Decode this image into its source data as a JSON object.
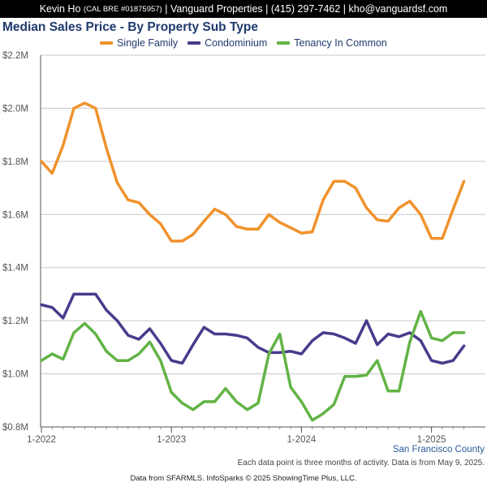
{
  "header": {
    "name": "Kevin Ho",
    "license": "(CAL BRE #01875957)",
    "company": "| Vanguard Properties | (415) 297-7462 | kho@vanguardsf.com"
  },
  "title": "Median Sales Price - By Property Sub Type",
  "region": "San Francisco County",
  "note": "Each data point is three months of activity. Data is from May 9, 2025.",
  "footer": "Data from SFARMLS. InfoSparks © 2025 ShowingTime Plus, LLC.",
  "chart_data": {
    "type": "line",
    "x": [
      "2022-01",
      "2022-02",
      "2022-03",
      "2022-04",
      "2022-05",
      "2022-06",
      "2022-07",
      "2022-08",
      "2022-09",
      "2022-10",
      "2022-11",
      "2022-12",
      "2023-01",
      "2023-02",
      "2023-03",
      "2023-04",
      "2023-05",
      "2023-06",
      "2023-07",
      "2023-08",
      "2023-09",
      "2023-10",
      "2023-11",
      "2023-12",
      "2024-01",
      "2024-02",
      "2024-03",
      "2024-04",
      "2024-05",
      "2024-06",
      "2024-07",
      "2024-08",
      "2024-09",
      "2024-10",
      "2024-11",
      "2024-12",
      "2025-01",
      "2025-02",
      "2025-03",
      "2025-04"
    ],
    "x_tick_labels": [
      "1-2022",
      "1-2023",
      "1-2024",
      "1-2025"
    ],
    "x_tick_index": [
      0,
      12,
      24,
      36
    ],
    "y_tick_labels": [
      "$0.8M",
      "$1.0M",
      "$1.2M",
      "$1.4M",
      "$1.6M",
      "$1.8M",
      "$2.0M",
      "$2.2M"
    ],
    "y_tick_values": [
      0.8,
      1.0,
      1.2,
      1.4,
      1.6,
      1.8,
      2.0,
      2.2
    ],
    "ylim": [
      0.8,
      2.2
    ],
    "y_unit": "millions USD",
    "grid": true,
    "legend_position": "top",
    "series": [
      {
        "name": "Single Family",
        "color": "#f0922b",
        "values": [
          1.8,
          1.755,
          1.86,
          2.0,
          2.02,
          2.0,
          1.85,
          1.72,
          1.655,
          1.645,
          1.6,
          1.565,
          1.5,
          1.5,
          1.525,
          1.575,
          1.62,
          1.6,
          1.555,
          1.545,
          1.545,
          1.6,
          1.57,
          1.55,
          1.53,
          1.535,
          1.655,
          1.725,
          1.725,
          1.7,
          1.625,
          1.58,
          1.575,
          1.625,
          1.65,
          1.6,
          1.51,
          1.51,
          1.62,
          1.725
        ]
      },
      {
        "name": "Condominium",
        "color": "#4b3a8c",
        "values": [
          1.26,
          1.25,
          1.21,
          1.3,
          1.3,
          1.3,
          1.24,
          1.2,
          1.145,
          1.13,
          1.17,
          1.115,
          1.05,
          1.04,
          1.11,
          1.175,
          1.15,
          1.15,
          1.145,
          1.135,
          1.1,
          1.08,
          1.08,
          1.085,
          1.075,
          1.125,
          1.155,
          1.15,
          1.135,
          1.115,
          1.2,
          1.11,
          1.15,
          1.14,
          1.155,
          1.125,
          1.05,
          1.04,
          1.05,
          1.105
        ]
      },
      {
        "name": "Tenancy In Common",
        "color": "#62b346",
        "values": [
          1.05,
          1.075,
          1.055,
          1.155,
          1.19,
          1.15,
          1.085,
          1.05,
          1.05,
          1.075,
          1.12,
          1.05,
          0.93,
          0.89,
          0.865,
          0.895,
          0.895,
          0.945,
          0.895,
          0.865,
          0.89,
          1.075,
          1.15,
          0.95,
          0.895,
          0.825,
          0.85,
          0.885,
          0.99,
          0.99,
          0.995,
          1.05,
          0.935,
          0.935,
          1.12,
          1.235,
          1.135,
          1.125,
          1.155,
          1.155
        ]
      }
    ]
  }
}
